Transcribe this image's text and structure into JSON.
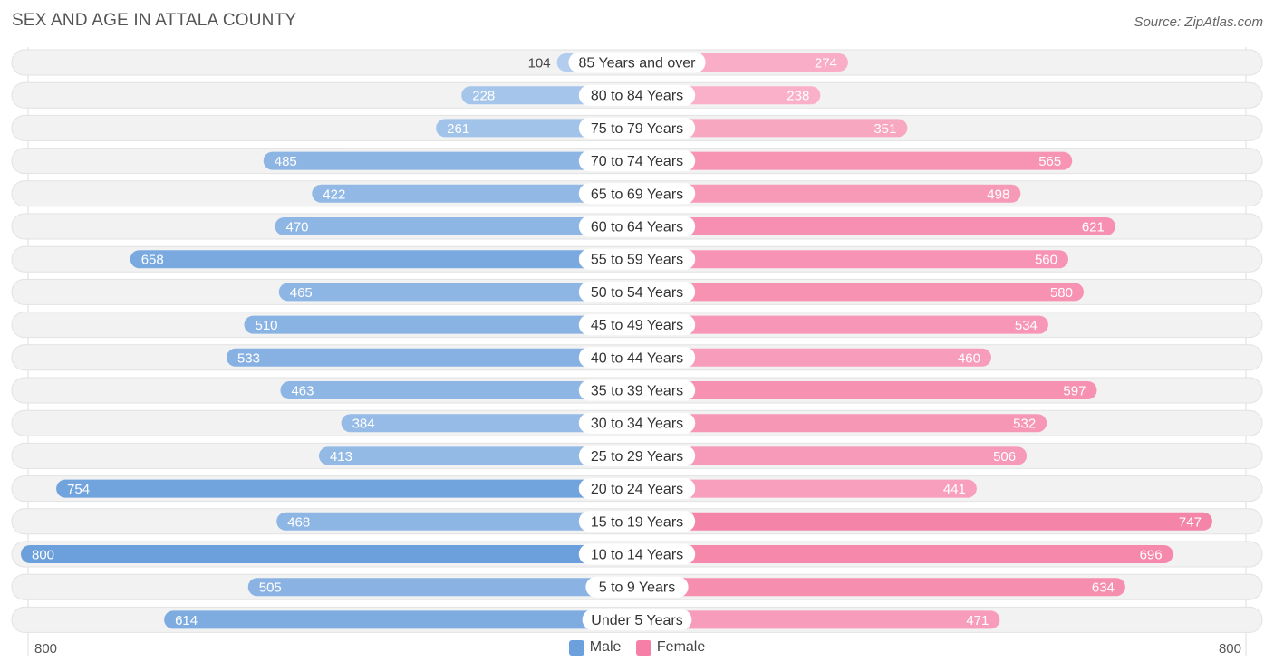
{
  "title": "SEX AND AGE IN ATTALA COUNTY",
  "source": "Source: ZipAtlas.com",
  "axis": {
    "left_label": "800",
    "right_label": "800"
  },
  "legend": {
    "male_label": "Male",
    "female_label": "Female",
    "male_color": "#6ca0dc",
    "female_color": "#f57fa6"
  },
  "chart_data": {
    "type": "bar",
    "orientation": "horizontal-diverging",
    "title": "SEX AND AGE IN ATTALA COUNTY",
    "categories": [
      "85 Years and over",
      "80 to 84 Years",
      "75 to 79 Years",
      "70 to 74 Years",
      "65 to 69 Years",
      "60 to 64 Years",
      "55 to 59 Years",
      "50 to 54 Years",
      "45 to 49 Years",
      "40 to 44 Years",
      "35 to 39 Years",
      "30 to 34 Years",
      "25 to 29 Years",
      "20 to 24 Years",
      "15 to 19 Years",
      "10 to 14 Years",
      "5 to 9 Years",
      "Under 5 Years"
    ],
    "series": [
      {
        "name": "Male",
        "values": [
          104,
          228,
          261,
          485,
          422,
          470,
          658,
          465,
          510,
          533,
          463,
          384,
          413,
          754,
          468,
          800,
          505,
          614
        ]
      },
      {
        "name": "Female",
        "values": [
          274,
          238,
          351,
          565,
          498,
          621,
          560,
          580,
          534,
          460,
          597,
          532,
          506,
          441,
          747,
          696,
          634,
          471
        ]
      }
    ],
    "xlim": [
      0,
      800
    ],
    "legend_position": "bottom-center"
  }
}
